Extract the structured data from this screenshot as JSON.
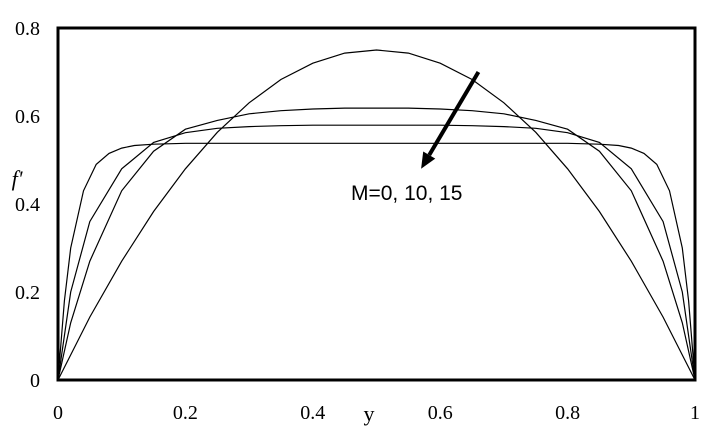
{
  "chart_data": {
    "type": "line",
    "xlabel": "y",
    "ylabel": "f'",
    "xlim": [
      0,
      1
    ],
    "ylim": [
      0,
      0.8
    ],
    "grid": false,
    "x_ticks": [
      "0",
      "0.2",
      "0.4",
      "0.6",
      "0.8",
      "1"
    ],
    "y_ticks": [
      "0",
      "0.2",
      "0.4",
      "0.6",
      "0.8"
    ],
    "annotation": {
      "text": "M=0, 10, 15",
      "arrow_from": [
        0.66,
        0.7
      ],
      "arrow_to": [
        0.57,
        0.48
      ]
    },
    "series": [
      {
        "x": [
          0,
          0.05,
          0.1,
          0.15,
          0.2,
          0.25,
          0.3,
          0.35,
          0.4,
          0.45,
          0.5,
          0.55,
          0.6,
          0.65,
          0.7,
          0.75,
          0.8,
          0.85,
          0.9,
          0.95,
          1
        ],
        "values": [
          0,
          0.143,
          0.27,
          0.383,
          0.48,
          0.563,
          0.63,
          0.683,
          0.72,
          0.743,
          0.75,
          0.743,
          0.72,
          0.683,
          0.63,
          0.563,
          0.48,
          0.383,
          0.27,
          0.143,
          0
        ]
      },
      {
        "x": [
          0,
          0.02,
          0.05,
          0.1,
          0.15,
          0.2,
          0.25,
          0.3,
          0.35,
          0.4,
          0.45,
          0.5,
          0.55,
          0.6,
          0.65,
          0.7,
          0.75,
          0.8,
          0.85,
          0.9,
          0.95,
          0.98,
          1
        ],
        "values": [
          0,
          0.13,
          0.27,
          0.43,
          0.52,
          0.57,
          0.59,
          0.605,
          0.612,
          0.616,
          0.618,
          0.618,
          0.618,
          0.616,
          0.612,
          0.605,
          0.59,
          0.57,
          0.52,
          0.43,
          0.27,
          0.13,
          0
        ]
      },
      {
        "x": [
          0,
          0.02,
          0.05,
          0.1,
          0.15,
          0.2,
          0.25,
          0.3,
          0.35,
          0.4,
          0.45,
          0.5,
          0.55,
          0.6,
          0.65,
          0.7,
          0.75,
          0.8,
          0.85,
          0.9,
          0.95,
          0.98,
          1
        ],
        "values": [
          0,
          0.2,
          0.36,
          0.48,
          0.54,
          0.562,
          0.572,
          0.576,
          0.578,
          0.579,
          0.579,
          0.579,
          0.579,
          0.579,
          0.578,
          0.576,
          0.572,
          0.562,
          0.54,
          0.48,
          0.36,
          0.2,
          0
        ]
      },
      {
        "x": [
          0,
          0.01,
          0.02,
          0.04,
          0.06,
          0.08,
          0.1,
          0.12,
          0.15,
          0.2,
          0.3,
          0.5,
          0.7,
          0.8,
          0.85,
          0.88,
          0.9,
          0.92,
          0.94,
          0.96,
          0.98,
          0.99,
          1
        ],
        "values": [
          0,
          0.18,
          0.3,
          0.43,
          0.49,
          0.515,
          0.527,
          0.533,
          0.536,
          0.538,
          0.538,
          0.538,
          0.538,
          0.538,
          0.536,
          0.533,
          0.527,
          0.515,
          0.49,
          0.43,
          0.3,
          0.18,
          0
        ]
      }
    ]
  }
}
